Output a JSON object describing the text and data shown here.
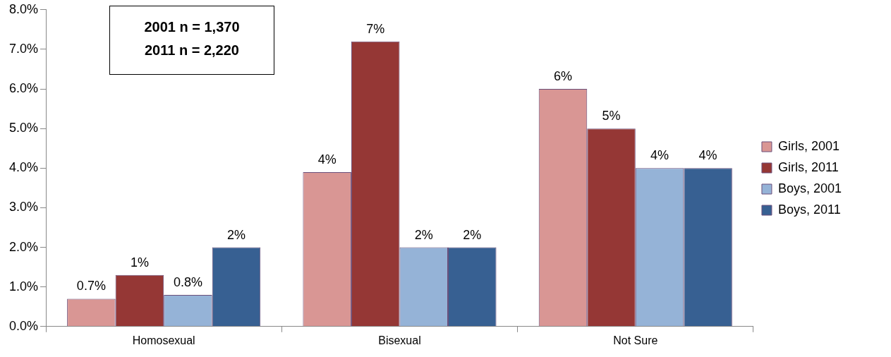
{
  "chart_data": {
    "type": "bar",
    "categories": [
      "Homosexual",
      "Bisexual",
      "Not Sure"
    ],
    "series": [
      {
        "name": "Girls, 2001",
        "color": "#d99694",
        "values": [
          0.7,
          3.9,
          6.0
        ],
        "value_labels": [
          "0.7%",
          "4%",
          "6%"
        ]
      },
      {
        "name": "Girls, 2011",
        "color": "#953735",
        "values": [
          1.3,
          7.2,
          5.0
        ],
        "value_labels": [
          "1%",
          "7%",
          "5%"
        ]
      },
      {
        "name": "Boys, 2001",
        "color": "#95b3d7",
        "values": [
          0.8,
          2.0,
          4.0
        ],
        "value_labels": [
          "0.8%",
          "2%",
          "4%"
        ]
      },
      {
        "name": "Boys, 2011",
        "color": "#376092",
        "values": [
          2.0,
          2.0,
          4.0
        ],
        "value_labels": [
          "2%",
          "2%",
          "4%"
        ]
      }
    ],
    "ylim": [
      0,
      8
    ],
    "yticks": [
      {
        "value": 0,
        "label": "0.0%"
      },
      {
        "value": 1,
        "label": "1.0%"
      },
      {
        "value": 2,
        "label": "2.0%"
      },
      {
        "value": 3,
        "label": "3.0%"
      },
      {
        "value": 4,
        "label": "4.0%"
      },
      {
        "value": 5,
        "label": "5.0%"
      },
      {
        "value": 6,
        "label": "6.0%"
      },
      {
        "value": 7,
        "label": "7.0%"
      },
      {
        "value": 8,
        "label": "8.0%"
      }
    ],
    "grid": false,
    "legend": "right",
    "annotations": [
      "2001 n = 1,370",
      "2011 n = 2,220"
    ]
  }
}
